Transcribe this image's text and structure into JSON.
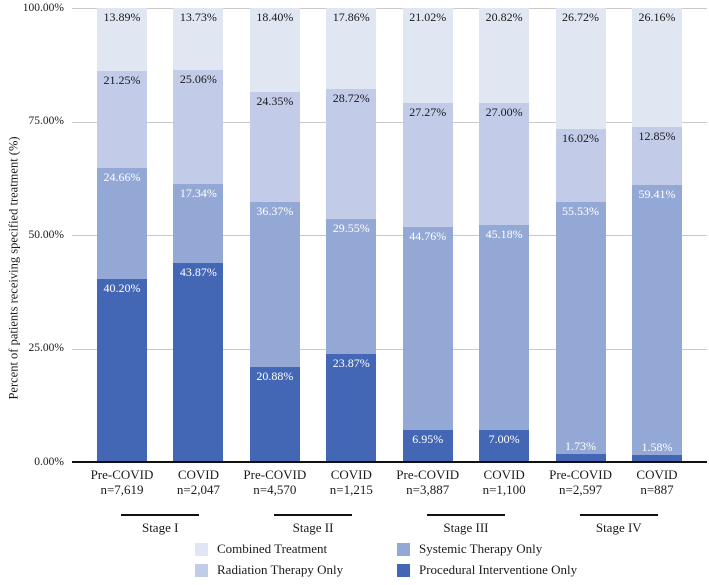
{
  "chart_data": {
    "type": "bar",
    "stacked": true,
    "orientation": "vertical",
    "title": "",
    "xlabel": "",
    "ylabel": "Percent of patients receiving specified treatment (%)",
    "ylim": [
      0,
      100
    ],
    "grid": true,
    "gridline_color": "#c9c9c9",
    "axis_color": "#111111",
    "legend_position": "bottom",
    "y_ticks": [
      {
        "value": 100,
        "label": "100.00%"
      },
      {
        "value": 75,
        "label": "75.00%"
      },
      {
        "value": 50,
        "label": "50.00%"
      },
      {
        "value": 25,
        "label": "25.00%"
      },
      {
        "value": 0,
        "label": "0.00%"
      }
    ],
    "segments_top_to_bottom": [
      {
        "name": "Combined Treatment",
        "color": "#e1e6f3",
        "label_color": "#1a1a1a"
      },
      {
        "name": "Radiation Therapy Only",
        "color": "#c2cce9",
        "label_color": "#1a1a1a"
      },
      {
        "name": "Systemic Therapy Only",
        "color": "#94a8d6",
        "label_color": "#ffffff"
      },
      {
        "name": "Procedural Interventione Only",
        "color": "#4467b5",
        "label_color": "#ffffff"
      }
    ],
    "legend_items_row_major": [
      {
        "label": "Combined Treatment",
        "color": "#e1e6f3"
      },
      {
        "label": "Systemic Therapy Only",
        "color": "#94a8d6"
      },
      {
        "label": "Radiation Therapy Only",
        "color": "#c2cce9"
      },
      {
        "label": "Procedural Interventione Only",
        "color": "#4467b5"
      }
    ],
    "groups": [
      {
        "stage": "Stage I",
        "bars": [
          {
            "period": "Pre-COVID",
            "n_label": "n=7,619",
            "values": [
              13.89,
              21.25,
              24.66,
              40.2
            ]
          },
          {
            "period": "COVID",
            "n_label": "n=2,047",
            "values": [
              13.73,
              25.06,
              17.34,
              43.87
            ]
          }
        ]
      },
      {
        "stage": "Stage II",
        "bars": [
          {
            "period": "Pre-COVID",
            "n_label": "n=4,570",
            "values": [
              18.4,
              24.35,
              36.37,
              20.88
            ]
          },
          {
            "period": "COVID",
            "n_label": "n=1,215",
            "values": [
              17.86,
              28.72,
              29.55,
              23.87
            ]
          }
        ]
      },
      {
        "stage": "Stage III",
        "bars": [
          {
            "period": "Pre-COVID",
            "n_label": "n=3,887",
            "values": [
              21.02,
              27.27,
              44.76,
              6.95
            ]
          },
          {
            "period": "COVID",
            "n_label": "n=1,100",
            "values": [
              20.82,
              27.0,
              45.18,
              7.0
            ]
          }
        ]
      },
      {
        "stage": "Stage IV",
        "bars": [
          {
            "period": "Pre-COVID",
            "n_label": "n=2,597",
            "values": [
              26.72,
              16.02,
              55.53,
              1.73
            ]
          },
          {
            "period": "COVID",
            "n_label": "n=887",
            "values": [
              26.16,
              12.85,
              59.41,
              1.58
            ]
          }
        ]
      }
    ],
    "value_label_format": "0.00%"
  }
}
